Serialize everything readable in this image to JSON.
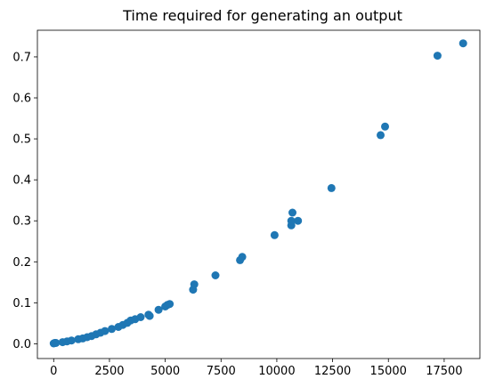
{
  "chart_data": {
    "type": "scatter",
    "title": "Time required for generating an output",
    "xlabel": "",
    "ylabel": "",
    "xlim": [
      -730,
      19100
    ],
    "ylim": [
      -0.036,
      0.765
    ],
    "x_ticks": [
      0,
      2500,
      5000,
      7500,
      10000,
      12500,
      15000,
      17500
    ],
    "x_tick_labels": [
      "0",
      "2500",
      "5000",
      "7500",
      "10000",
      "12500",
      "15000",
      "17500"
    ],
    "y_ticks": [
      0.0,
      0.1,
      0.2,
      0.3,
      0.4,
      0.5,
      0.6,
      0.7
    ],
    "y_tick_labels": [
      "0.0",
      "0.1",
      "0.2",
      "0.3",
      "0.4",
      "0.5",
      "0.6",
      "0.7"
    ],
    "grid": false,
    "marker_color": "#1f77b4",
    "series": [
      {
        "points": [
          [
            0,
            0.001
          ],
          [
            50,
            0.002
          ],
          [
            100,
            0.002
          ],
          [
            400,
            0.004
          ],
          [
            600,
            0.006
          ],
          [
            800,
            0.008
          ],
          [
            1100,
            0.011
          ],
          [
            1300,
            0.013
          ],
          [
            1500,
            0.016
          ],
          [
            1700,
            0.019
          ],
          [
            1900,
            0.023
          ],
          [
            2100,
            0.027
          ],
          [
            2300,
            0.031
          ],
          [
            2600,
            0.036
          ],
          [
            2900,
            0.041
          ],
          [
            3100,
            0.046
          ],
          [
            3300,
            0.051
          ],
          [
            3450,
            0.057
          ],
          [
            3650,
            0.06
          ],
          [
            3900,
            0.065
          ],
          [
            4250,
            0.071
          ],
          [
            4300,
            0.068
          ],
          [
            4700,
            0.083
          ],
          [
            5000,
            0.091
          ],
          [
            5100,
            0.095
          ],
          [
            5200,
            0.097
          ],
          [
            6250,
            0.132
          ],
          [
            6300,
            0.145
          ],
          [
            7250,
            0.167
          ],
          [
            8350,
            0.204
          ],
          [
            8450,
            0.212
          ],
          [
            9900,
            0.265
          ],
          [
            10650,
            0.289
          ],
          [
            10650,
            0.3
          ],
          [
            10700,
            0.32
          ],
          [
            10950,
            0.3
          ],
          [
            12450,
            0.38
          ],
          [
            14650,
            0.509
          ],
          [
            14850,
            0.53
          ],
          [
            17200,
            0.703
          ],
          [
            18350,
            0.733
          ]
        ]
      }
    ]
  }
}
